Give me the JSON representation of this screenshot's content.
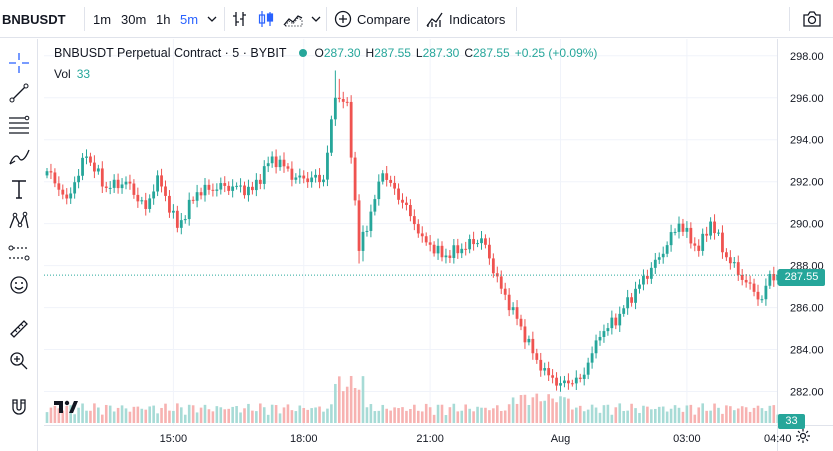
{
  "toolbar": {
    "symbol": "BNBUSDT",
    "intervals": [
      "1m",
      "30m",
      "1h",
      "5m"
    ],
    "active_interval": "5m",
    "compare_label": "Compare",
    "indicators_label": "Indicators"
  },
  "legend": {
    "title": "BNBUSDT Perpetual Contract · 5 · BYBIT",
    "o_label": "O",
    "o_value": "287.30",
    "h_label": "H",
    "h_value": "287.55",
    "l_label": "L",
    "l_value": "287.30",
    "c_label": "C",
    "c_value": "287.55",
    "change": "+0.25 (+0.09%)",
    "vol_label": "Vol",
    "vol_value": "33"
  },
  "price_scale": {
    "labels": [
      "298.00",
      "296.00",
      "294.00",
      "292.00",
      "290.00",
      "288.00",
      "286.00",
      "284.00",
      "282.00"
    ],
    "current_price": "287.55",
    "volume_badge": "33"
  },
  "time_scale": {
    "labels": [
      "15:00",
      "18:00",
      "21:00",
      "Aug",
      "03:00",
      "04:40"
    ]
  },
  "colors": {
    "up": "#26a69a",
    "down": "#ef5350",
    "up_vol": "#a7dbd6",
    "down_vol": "#f7b2b1",
    "accent": "#2962ff"
  },
  "chart_data": {
    "type": "candlestick",
    "ylim": [
      280.5,
      298.8
    ],
    "anchors_close": [
      [
        0,
        292.5
      ],
      [
        5,
        291.2
      ],
      [
        10,
        293.2
      ],
      [
        15,
        291.7
      ],
      [
        20,
        292.0
      ],
      [
        25,
        290.7
      ],
      [
        28,
        292.3
      ],
      [
        33,
        289.8
      ],
      [
        38,
        291.5
      ],
      [
        45,
        291.8
      ],
      [
        52,
        291.6
      ],
      [
        57,
        293.2
      ],
      [
        63,
        292.2
      ],
      [
        70,
        292.1
      ],
      [
        73,
        296.0
      ],
      [
        76,
        295.8
      ],
      [
        79,
        288.7
      ],
      [
        85,
        292.4
      ],
      [
        90,
        291.0
      ],
      [
        95,
        289.4
      ],
      [
        100,
        288.4
      ],
      [
        105,
        288.8
      ],
      [
        110,
        289.3
      ],
      [
        115,
        286.9
      ],
      [
        120,
        285.1
      ],
      [
        125,
        283.0
      ],
      [
        130,
        282.4
      ],
      [
        135,
        282.6
      ],
      [
        140,
        284.6
      ],
      [
        145,
        285.7
      ],
      [
        150,
        287.1
      ],
      [
        155,
        288.4
      ],
      [
        160,
        290.0
      ],
      [
        165,
        288.7
      ],
      [
        168,
        290.1
      ],
      [
        172,
        288.4
      ],
      [
        177,
        287.2
      ],
      [
        181,
        286.4
      ],
      [
        183,
        287.6
      ],
      [
        185,
        287.55
      ]
    ],
    "x_tick_index": [
      32,
      65,
      97,
      130,
      162,
      185
    ]
  }
}
